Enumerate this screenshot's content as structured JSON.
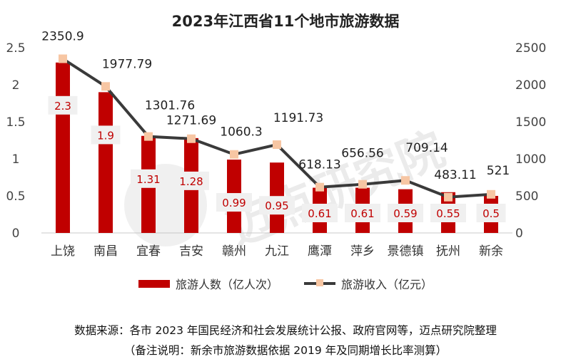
{
  "chart_data": {
    "type": "bar+line",
    "title": "2023年江西省11个地市旅游数据",
    "categories": [
      "上饶",
      "南昌",
      "宜春",
      "吉安",
      "赣州",
      "九江",
      "鹰潭",
      "萍乡",
      "景德镇",
      "抚州",
      "新余"
    ],
    "series": [
      {
        "name": "旅游人数（亿人次）",
        "type": "bar",
        "axis": "left",
        "values": [
          2.3,
          1.9,
          1.31,
          1.28,
          0.99,
          0.95,
          0.61,
          0.61,
          0.59,
          0.55,
          0.5
        ],
        "labels": [
          "2.3",
          "1.9",
          "1.31",
          "1.28",
          "0.99",
          "0.95",
          "0.61",
          "0.61",
          "0.59",
          "0.55",
          "0.5"
        ]
      },
      {
        "name": "旅游收入（亿元）",
        "type": "line",
        "axis": "right",
        "values": [
          2350.9,
          1977.79,
          1301.76,
          1271.69,
          1060.3,
          1191.73,
          618.13,
          656.56,
          709.14,
          483.11,
          521
        ],
        "labels": [
          "2350.9",
          "1977.79",
          "1301.76",
          "1271.69",
          "1060.3",
          "1191.73",
          "618.13",
          "656.56",
          "709.14",
          "483.11",
          "521"
        ]
      }
    ],
    "left_axis": {
      "ylim": [
        0,
        2.5
      ],
      "ticks": [
        "0",
        "0.5",
        "1",
        "1.5",
        "2",
        "2.5"
      ]
    },
    "right_axis": {
      "ylim": [
        0,
        2500
      ],
      "ticks": [
        "0",
        "500",
        "1000",
        "1500",
        "2000",
        "2500"
      ]
    },
    "grid": false,
    "legend": "bottom",
    "colors": {
      "bar": "#c00000",
      "line": "#3a3a3a",
      "marker": "#f7c6a3",
      "bar_label": "#c00000",
      "bar_label_bg": "#f0f0f0"
    }
  },
  "watermark": "迈点研究院",
  "footer": {
    "source": "数据来源：各市 2023 年国民经济和社会发展统计公报、政府官网等，迈点研究院整理",
    "note": "（备注说明：新余市旅游数据依据 2019 年及同期增长比率测算）"
  }
}
